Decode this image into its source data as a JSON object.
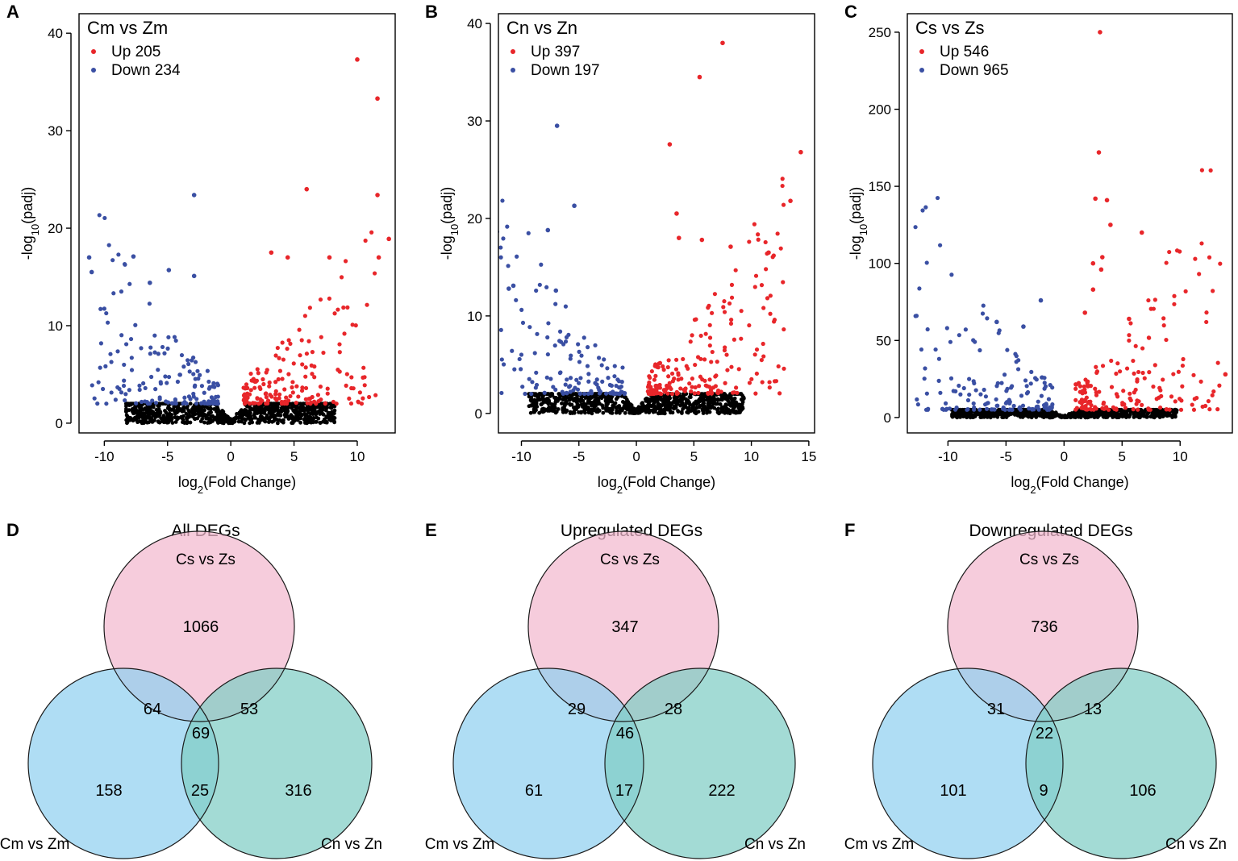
{
  "chart_data": [
    {
      "panel": "A",
      "type": "scatter",
      "title": "Cm vs Zm",
      "xlabel": "log2(Fold Change)",
      "ylabel": "-log10(padj)",
      "xlim": [
        -12,
        13
      ],
      "ylim": [
        -1,
        42
      ],
      "xticks": [
        -10,
        -5,
        0,
        5,
        10
      ],
      "yticks": [
        0,
        10,
        20,
        30,
        40
      ],
      "legend": [
        {
          "name": "Up",
          "count": 205,
          "color": "#e8262a"
        },
        {
          "name": "Down",
          "count": 234,
          "color": "#3a4fa3"
        }
      ],
      "ns_color": "#000000",
      "cloud": {
        "xmax": 11.5,
        "ns_threshold": 2.0,
        "fc_threshold": 1.0
      },
      "highlights": [
        {
          "x": 10.0,
          "y": 37.3,
          "group": "up"
        },
        {
          "x": 11.6,
          "y": 33.3,
          "group": "up"
        },
        {
          "x": 6.0,
          "y": 24.0,
          "group": "up"
        },
        {
          "x": 11.6,
          "y": 23.4,
          "group": "up"
        },
        {
          "x": 12.5,
          "y": 18.9,
          "group": "up"
        },
        {
          "x": 3.2,
          "y": 17.5,
          "group": "up"
        },
        {
          "x": 4.5,
          "y": 17.0,
          "group": "up"
        },
        {
          "x": 7.8,
          "y": 17.0,
          "group": "up"
        },
        {
          "x": 11.7,
          "y": 17.0,
          "group": "up"
        },
        {
          "x": -2.9,
          "y": 23.4,
          "group": "down"
        },
        {
          "x": -11.2,
          "y": 17.0,
          "group": "down"
        },
        {
          "x": -7.7,
          "y": 17.1,
          "group": "down"
        },
        {
          "x": -4.9,
          "y": 15.7,
          "group": "down"
        },
        {
          "x": -2.9,
          "y": 15.1,
          "group": "down"
        },
        {
          "x": -6.4,
          "y": 14.4,
          "group": "down"
        },
        {
          "x": -11.0,
          "y": 15.5,
          "group": "down"
        }
      ]
    },
    {
      "panel": "B",
      "type": "scatter",
      "title": "Cn vs Zn",
      "xlabel": "log2(Fold Change)",
      "ylabel": "-log10(padj)",
      "xlim": [
        -12,
        15.5
      ],
      "ylim": [
        -2,
        41
      ],
      "xticks": [
        -10,
        -5,
        0,
        5,
        10,
        15
      ],
      "yticks": [
        0,
        10,
        20,
        30,
        40
      ],
      "legend": [
        {
          "name": "Up",
          "count": 397,
          "color": "#e8262a"
        },
        {
          "name": "Down",
          "count": 197,
          "color": "#3a4fa3"
        }
      ],
      "ns_color": "#000000",
      "cloud": {
        "xmax": 13.0,
        "ns_threshold": 2.0,
        "fc_threshold": 1.0
      },
      "highlights": [
        {
          "x": 7.5,
          "y": 38.0,
          "group": "up"
        },
        {
          "x": 5.5,
          "y": 34.5,
          "group": "up"
        },
        {
          "x": 2.9,
          "y": 27.6,
          "group": "up"
        },
        {
          "x": 14.3,
          "y": 26.8,
          "group": "up"
        },
        {
          "x": 13.4,
          "y": 21.8,
          "group": "up"
        },
        {
          "x": 3.5,
          "y": 20.5,
          "group": "up"
        },
        {
          "x": 3.7,
          "y": 18.0,
          "group": "up"
        },
        {
          "x": 5.7,
          "y": 17.8,
          "group": "up"
        },
        {
          "x": 8.2,
          "y": 17.1,
          "group": "up"
        },
        {
          "x": 11.5,
          "y": 16.5,
          "group": "up"
        },
        {
          "x": -6.9,
          "y": 29.5,
          "group": "down"
        },
        {
          "x": -5.4,
          "y": 21.3,
          "group": "down"
        },
        {
          "x": -7.7,
          "y": 18.8,
          "group": "down"
        },
        {
          "x": -11.1,
          "y": 12.8,
          "group": "down"
        },
        {
          "x": -10.7,
          "y": 13.1,
          "group": "down"
        },
        {
          "x": -7.0,
          "y": 12.6,
          "group": "down"
        }
      ]
    },
    {
      "panel": "C",
      "type": "scatter",
      "title": "Cs vs Zs",
      "xlabel": "log2(Fold Change)",
      "ylabel": "-log10(padj)",
      "xlim": [
        -13.5,
        14.5
      ],
      "ylim": [
        -10,
        262
      ],
      "xticks": [
        -10,
        -5,
        0,
        5,
        10
      ],
      "yticks": [
        0,
        50,
        100,
        150,
        200,
        250
      ],
      "legend": [
        {
          "name": "Up",
          "count": 546,
          "color": "#e8262a"
        },
        {
          "name": "Down",
          "count": 965,
          "color": "#3a4fa3"
        }
      ],
      "ns_color": "#000000",
      "cloud": {
        "xmax": 13.5,
        "ns_threshold": 5.0,
        "fc_threshold": 1.0
      },
      "highlights": [
        {
          "x": 3.1,
          "y": 250.0,
          "group": "up"
        },
        {
          "x": 3.0,
          "y": 172.0,
          "group": "up"
        },
        {
          "x": 2.7,
          "y": 142.0,
          "group": "up"
        },
        {
          "x": 3.7,
          "y": 141.0,
          "group": "up"
        },
        {
          "x": 4.0,
          "y": 125.0,
          "group": "up"
        },
        {
          "x": 6.7,
          "y": 120.0,
          "group": "up"
        },
        {
          "x": 3.3,
          "y": 104.0,
          "group": "up"
        },
        {
          "x": 2.5,
          "y": 100.0,
          "group": "up"
        },
        {
          "x": 3.2,
          "y": 96.0,
          "group": "up"
        },
        {
          "x": 2.5,
          "y": 83.0,
          "group": "up"
        },
        {
          "x": 1.8,
          "y": 68.0,
          "group": "up"
        },
        {
          "x": 5.6,
          "y": 64.0,
          "group": "up"
        },
        {
          "x": -2.0,
          "y": 76.0,
          "group": "down"
        },
        {
          "x": -5.8,
          "y": 62.0,
          "group": "down"
        },
        {
          "x": -3.5,
          "y": 59.0,
          "group": "down"
        },
        {
          "x": 13.9,
          "y": 28.0,
          "group": "up"
        }
      ]
    },
    {
      "panel": "D",
      "type": "venn",
      "title": "All DEGs",
      "sets": [
        "Cs vs Zs",
        "Cm vs Zm",
        "Cn vs Zn"
      ],
      "set_colors": [
        "#f2b8ce",
        "#90d0f0",
        "#7fcdc5"
      ],
      "regions": {
        "cs_only": 1066,
        "cm_only": 158,
        "cn_only": 316,
        "cs_cm": 64,
        "cs_cn": 53,
        "cm_cn": 25,
        "all": 69
      }
    },
    {
      "panel": "E",
      "type": "venn",
      "title": "Upregulated DEGs",
      "sets": [
        "Cs vs Zs",
        "Cm vs Zm",
        "Cn vs Zn"
      ],
      "set_colors": [
        "#f2b8ce",
        "#90d0f0",
        "#7fcdc5"
      ],
      "regions": {
        "cs_only": 347,
        "cm_only": 61,
        "cn_only": 222,
        "cs_cm": 29,
        "cs_cn": 28,
        "cm_cn": 17,
        "all": 46
      }
    },
    {
      "panel": "F",
      "type": "venn",
      "title": "Downregulated DEGs",
      "sets": [
        "Cs vs Zs",
        "Cm vs Zm",
        "Cn vs Zn"
      ],
      "set_colors": [
        "#f2b8ce",
        "#90d0f0",
        "#7fcdc5"
      ],
      "regions": {
        "cs_only": 736,
        "cm_only": 101,
        "cn_only": 106,
        "cs_cm": 31,
        "cs_cn": 13,
        "cm_cn": 9,
        "all": 22
      }
    }
  ]
}
